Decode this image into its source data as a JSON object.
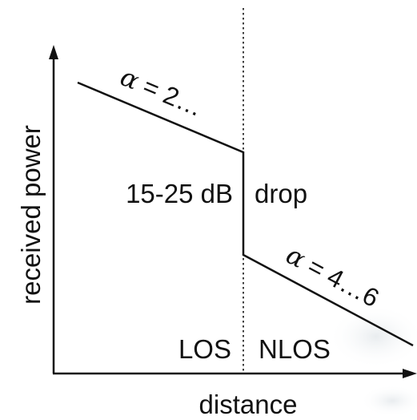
{
  "diagram": {
    "axes": {
      "x_label": "distance",
      "y_label": "received power"
    },
    "regions": {
      "left": "LOS",
      "right": "NLOS"
    },
    "annotations": {
      "drop_value": "15-25 dB",
      "drop_word": "drop",
      "alpha_los_symbol": "α",
      "alpha_los_text": " = 2…",
      "alpha_nlos_symbol": "α",
      "alpha_nlos_text": " = 4…6"
    },
    "colors": {
      "ink": "#111111",
      "background": "#ffffff"
    }
  }
}
